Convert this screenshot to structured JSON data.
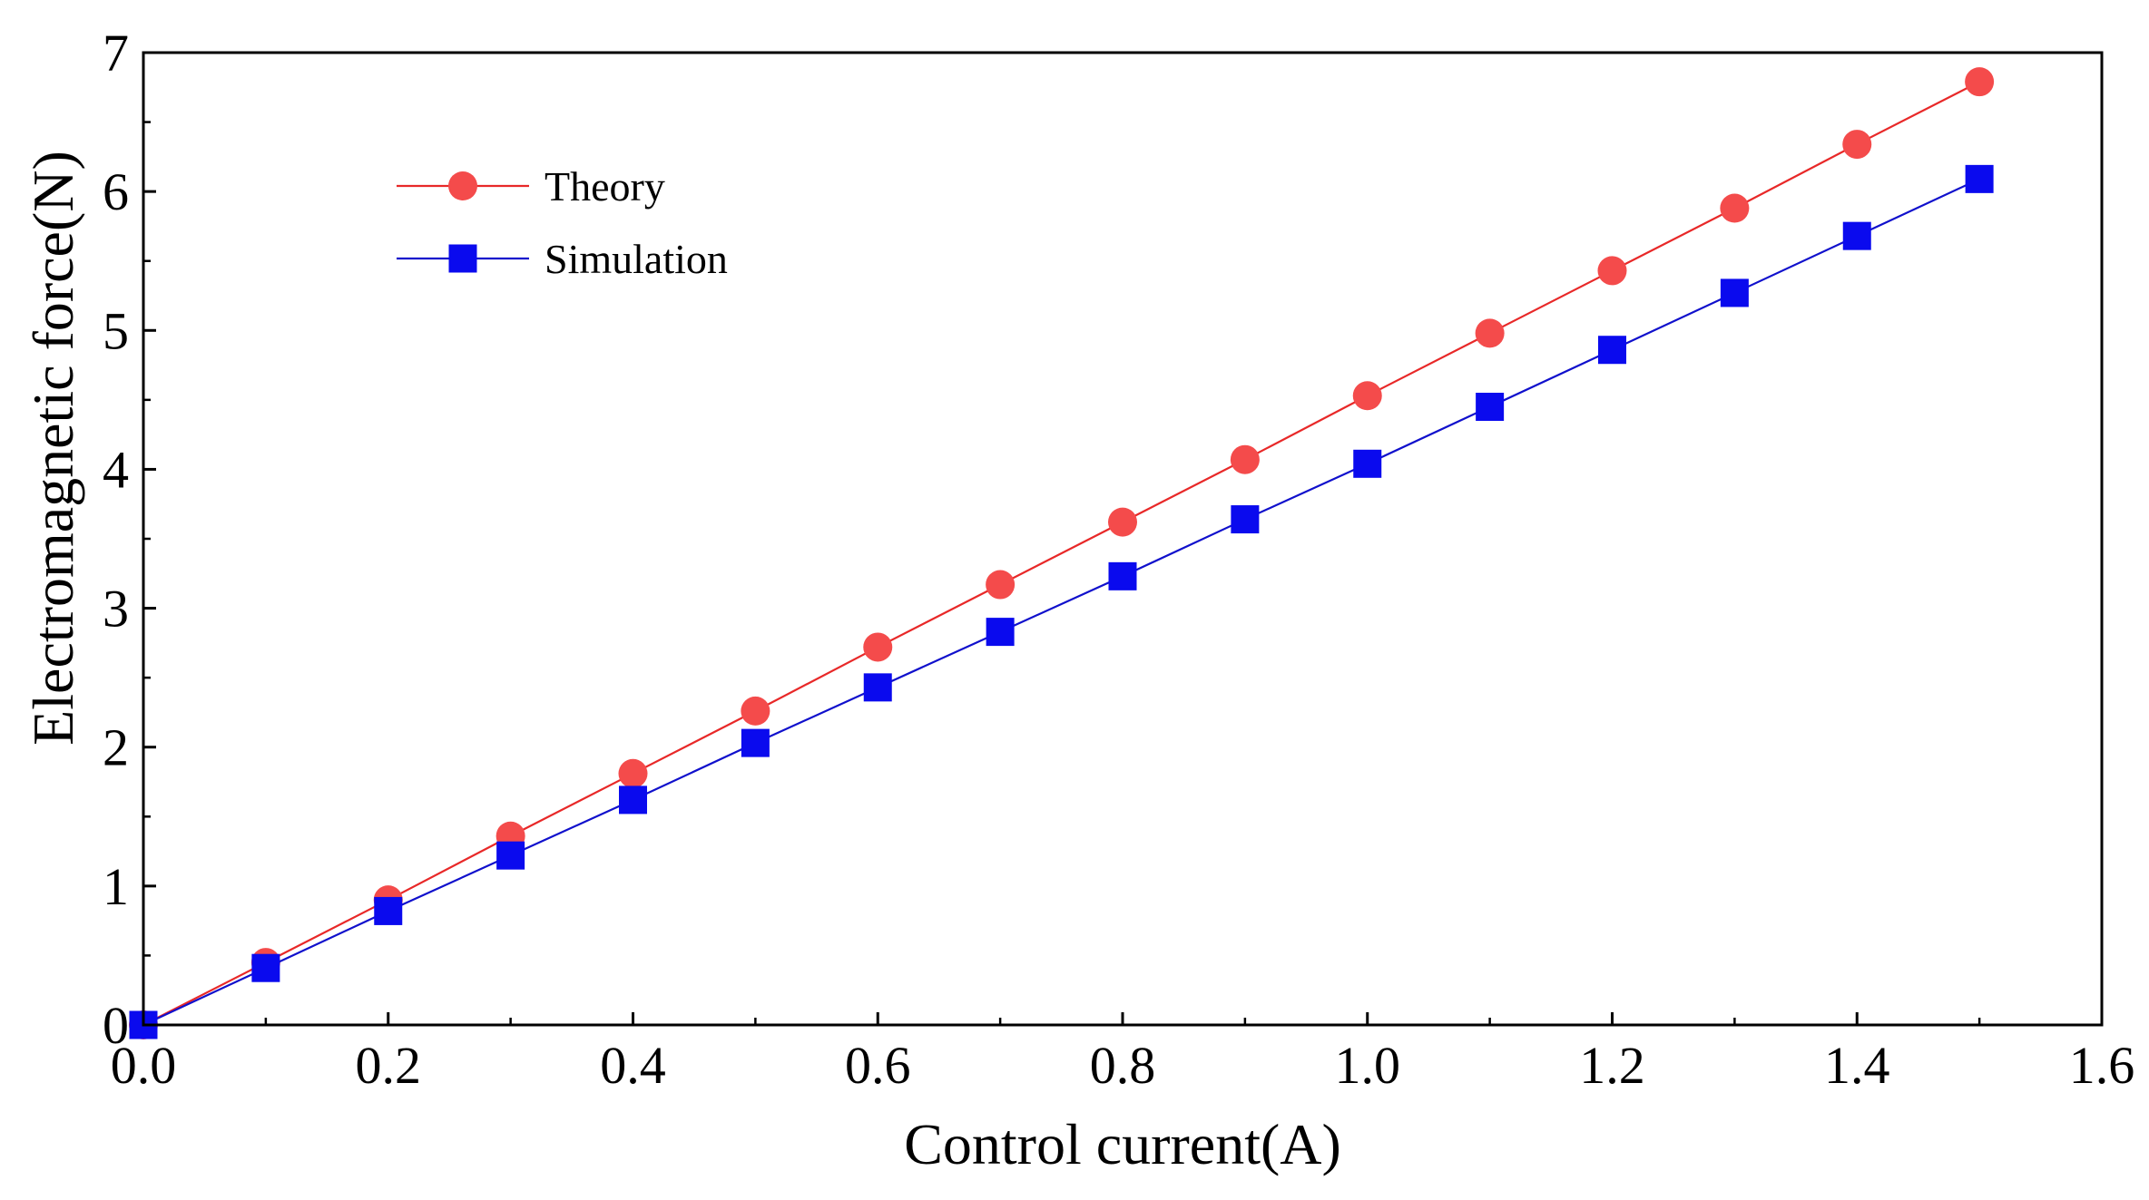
{
  "chart_data": {
    "type": "line",
    "title": "",
    "xlabel": "Control current(A)",
    "ylabel": "Electromagnetic force(N)",
    "xlim": [
      0.0,
      1.6
    ],
    "ylim": [
      0,
      7
    ],
    "x_ticks": [
      0.0,
      0.2,
      0.4,
      0.6,
      0.8,
      1.0,
      1.2,
      1.4,
      1.6
    ],
    "x_tick_labels": [
      "0.0",
      "0.2",
      "0.4",
      "0.6",
      "0.8",
      "1.0",
      "1.2",
      "1.4",
      "1.6"
    ],
    "y_ticks": [
      0,
      1,
      2,
      3,
      4,
      5,
      6,
      7
    ],
    "y_tick_labels": [
      "0",
      "1",
      "2",
      "3",
      "4",
      "5",
      "6",
      "7"
    ],
    "grid": false,
    "legend_position": "top-left",
    "x": [
      0.0,
      0.1,
      0.2,
      0.3,
      0.4,
      0.5,
      0.6,
      0.7,
      0.8,
      0.9,
      1.0,
      1.1,
      1.2,
      1.3,
      1.4,
      1.5
    ],
    "series": [
      {
        "name": "Theory",
        "marker": "circle",
        "color": "#f44b4b",
        "line_color": "#e82828",
        "values": [
          0.0,
          0.45,
          0.9,
          1.36,
          1.81,
          2.26,
          2.72,
          3.17,
          3.62,
          4.07,
          4.53,
          4.98,
          5.43,
          5.88,
          6.34,
          6.79
        ]
      },
      {
        "name": "Simulation",
        "marker": "square",
        "color": "#0a0aee",
        "line_color": "#1010cc",
        "values": [
          0.0,
          0.41,
          0.82,
          1.22,
          1.62,
          2.03,
          2.43,
          2.83,
          3.23,
          3.64,
          4.04,
          4.45,
          4.86,
          5.27,
          5.68,
          6.09
        ]
      }
    ]
  }
}
